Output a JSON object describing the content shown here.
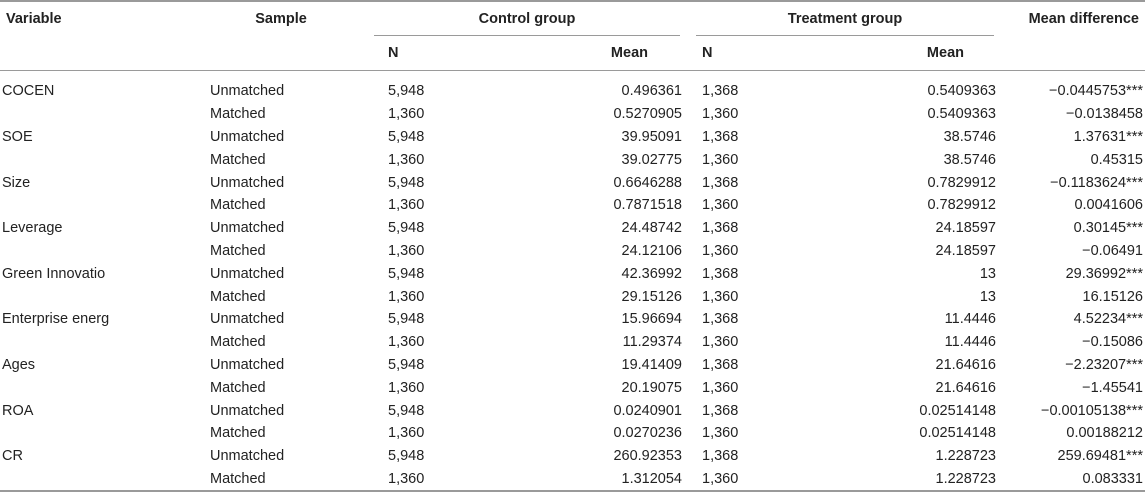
{
  "headers": {
    "variable": "Variable",
    "sample": "Sample",
    "control_group": "Control group",
    "treatment_group": "Treatment group",
    "mean_difference": "Mean difference",
    "n": "N",
    "mean": "Mean"
  },
  "rows": [
    {
      "variable": "COCEN",
      "sample": "Unmatched",
      "c_n": "5,948",
      "c_mean": "0.496361",
      "t_n": "1,368",
      "t_mean": "0.5409363",
      "diff": "−0.0445753***"
    },
    {
      "variable": "",
      "sample": "Matched",
      "c_n": "1,360",
      "c_mean": "0.5270905",
      "t_n": "1,360",
      "t_mean": "0.5409363",
      "diff": "−0.0138458"
    },
    {
      "variable": "SOE",
      "sample": "Unmatched",
      "c_n": "5,948",
      "c_mean": "39.95091",
      "t_n": "1,368",
      "t_mean": "38.5746",
      "diff": "1.37631***"
    },
    {
      "variable": "",
      "sample": "Matched",
      "c_n": "1,360",
      "c_mean": "39.02775",
      "t_n": "1,360",
      "t_mean": "38.5746",
      "diff": "0.45315"
    },
    {
      "variable": "Size",
      "sample": "Unmatched",
      "c_n": "5,948",
      "c_mean": "0.6646288",
      "t_n": "1,368",
      "t_mean": "0.7829912",
      "diff": "−0.1183624***"
    },
    {
      "variable": "",
      "sample": "Matched",
      "c_n": "1,360",
      "c_mean": "0.7871518",
      "t_n": "1,360",
      "t_mean": "0.7829912",
      "diff": "0.0041606"
    },
    {
      "variable": "Leverage",
      "sample": "Unmatched",
      "c_n": "5,948",
      "c_mean": "24.48742",
      "t_n": "1,368",
      "t_mean": "24.18597",
      "diff": "0.30145***"
    },
    {
      "variable": "",
      "sample": "Matched",
      "c_n": "1,360",
      "c_mean": "24.12106",
      "t_n": "1,360",
      "t_mean": "24.18597",
      "diff": "−0.06491"
    },
    {
      "variable": "Green Innovatio",
      "sample": "Unmatched",
      "c_n": "5,948",
      "c_mean": "42.36992",
      "t_n": "1,368",
      "t_mean": "13",
      "diff": "29.36992***"
    },
    {
      "variable": "",
      "sample": "Matched",
      "c_n": "1,360",
      "c_mean": "29.15126",
      "t_n": "1,360",
      "t_mean": "13",
      "diff": "16.15126"
    },
    {
      "variable": "Enterprise energ",
      "sample": "Unmatched",
      "c_n": "5,948",
      "c_mean": "15.96694",
      "t_n": "1,368",
      "t_mean": "11.4446",
      "diff": "4.52234***"
    },
    {
      "variable": "",
      "sample": "Matched",
      "c_n": "1,360",
      "c_mean": "11.29374",
      "t_n": "1,360",
      "t_mean": "11.4446",
      "diff": "−0.15086"
    },
    {
      "variable": "Ages",
      "sample": "Unmatched",
      "c_n": "5,948",
      "c_mean": "19.41409",
      "t_n": "1,368",
      "t_mean": "21.64616",
      "diff": "−2.23207***"
    },
    {
      "variable": "",
      "sample": "Matched",
      "c_n": "1,360",
      "c_mean": "20.19075",
      "t_n": "1,360",
      "t_mean": "21.64616",
      "diff": "−1.45541"
    },
    {
      "variable": "ROA",
      "sample": "Unmatched",
      "c_n": "5,948",
      "c_mean": "0.0240901",
      "t_n": "1,368",
      "t_mean": "0.02514148",
      "diff": "−0.00105138***"
    },
    {
      "variable": "",
      "sample": "Matched",
      "c_n": "1,360",
      "c_mean": "0.0270236",
      "t_n": "1,360",
      "t_mean": "0.02514148",
      "diff": "0.00188212"
    },
    {
      "variable": "CR",
      "sample": "Unmatched",
      "c_n": "5,948",
      "c_mean": "260.92353",
      "t_n": "1,368",
      "t_mean": "1.228723",
      "diff": "259.69481***"
    },
    {
      "variable": "",
      "sample": "Matched",
      "c_n": "1,360",
      "c_mean": "1.312054",
      "t_n": "1,360",
      "t_mean": "1.228723",
      "diff": "0.083331"
    }
  ]
}
